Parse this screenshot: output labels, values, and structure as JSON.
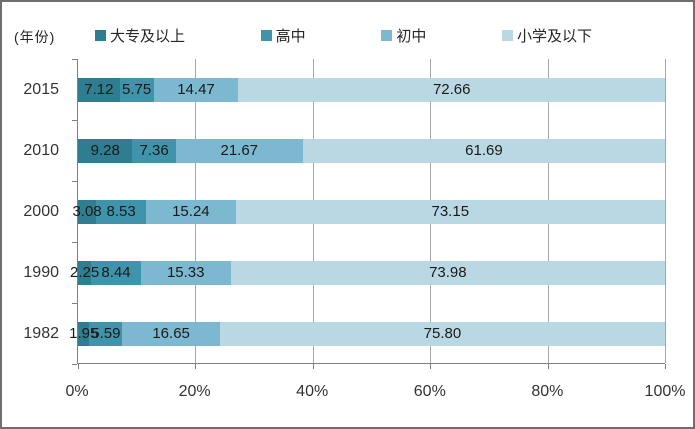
{
  "chart_data": {
    "type": "bar",
    "orientation": "horizontal-stacked",
    "title": "",
    "axis_unit_label": "(年份)",
    "categories": [
      "2015",
      "2010",
      "2000",
      "1990",
      "1982"
    ],
    "series": [
      {
        "name": "大专及以上",
        "color": "#2F7D90",
        "values": [
          7.12,
          9.28,
          3.08,
          2.25,
          1.95
        ]
      },
      {
        "name": "高中",
        "color": "#3F94AB",
        "values": [
          5.75,
          7.36,
          8.53,
          8.44,
          5.59
        ]
      },
      {
        "name": "初中",
        "color": "#7CB8D0",
        "values": [
          14.47,
          21.67,
          15.24,
          15.33,
          16.65
        ]
      },
      {
        "name": "小学及以下",
        "color": "#BAD8E4",
        "values": [
          72.66,
          61.69,
          73.15,
          73.98,
          75.8
        ]
      }
    ],
    "x_ticks": [
      "0%",
      "20%",
      "40%",
      "60%",
      "80%",
      "100%"
    ],
    "xlim": [
      0,
      100
    ],
    "value_labels": true,
    "value_label_format": "2-decimals",
    "legend_position": "top",
    "gridlines": "vertical",
    "grid_color": "#A6A6A6",
    "axis_color": "#808080"
  }
}
